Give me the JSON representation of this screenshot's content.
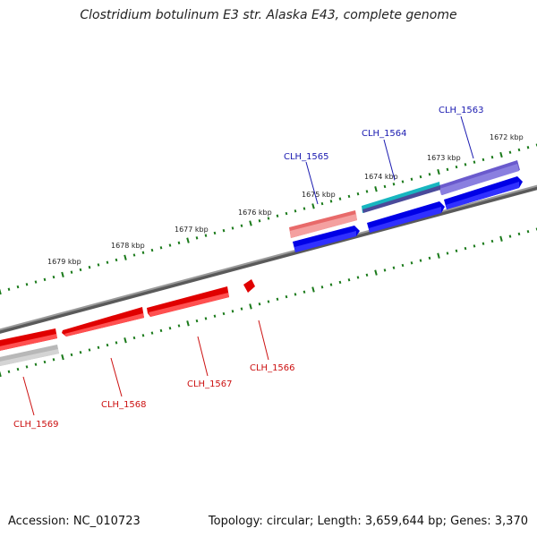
{
  "title": "Clostridium botulinum E3 str. Alaska E43, complete genome",
  "footer": {
    "accession": "Accession: NC_010723",
    "summary": "Topology: circular; Length: 3,659,644 bp; Genes: 3,370"
  },
  "colors": {
    "plus_strand": "#0000e0",
    "minus_strand": "#e00000",
    "label_plus": "#1a1ab0",
    "label_minus": "#cc1111",
    "tick": "#1a7a1a",
    "backbone": "#808080"
  },
  "ticks": [
    "1672 kbp",
    "1673 kbp",
    "1674 kbp",
    "1675 kbp",
    "1676 kbp",
    "1677 kbp",
    "1678 kbp",
    "1679 kbp"
  ],
  "genes": [
    {
      "label": "CLH_1563",
      "strand": "plus"
    },
    {
      "label": "CLH_1564",
      "strand": "plus"
    },
    {
      "label": "CLH_1565",
      "strand": "plus"
    },
    {
      "label": "CLH_1566",
      "strand": "minus"
    },
    {
      "label": "CLH_1567",
      "strand": "minus"
    },
    {
      "label": "CLH_1568",
      "strand": "minus"
    },
    {
      "label": "CLH_1569",
      "strand": "minus"
    }
  ]
}
